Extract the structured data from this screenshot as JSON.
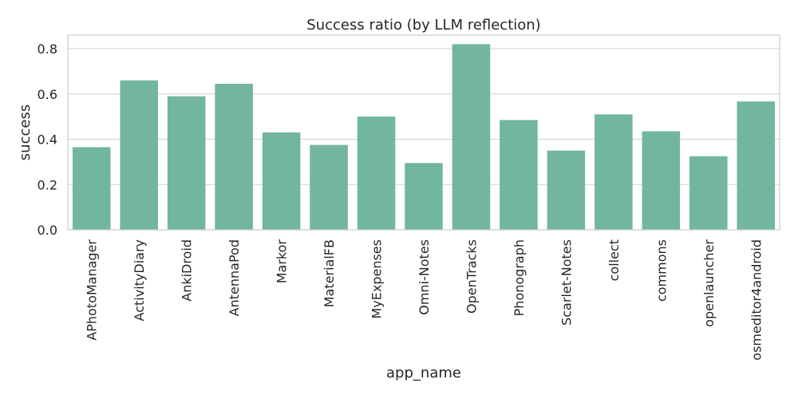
{
  "chart_data": {
    "type": "bar",
    "title": "Success ratio (by LLM reflection)",
    "xlabel": "app_name",
    "ylabel": "success",
    "ylim": [
      0,
      0.86
    ],
    "yticks": [
      0.0,
      0.2,
      0.4,
      0.6,
      0.8
    ],
    "ytick_labels": [
      "0.0",
      "0.2",
      "0.4",
      "0.6",
      "0.8"
    ],
    "grid": "horizontal",
    "bar_color": "#72b6a1",
    "categories": [
      "APhotoManager",
      "ActivityDiary",
      "AnkiDroid",
      "AntennaPod",
      "Markor",
      "MaterialFB",
      "MyExpenses",
      "Omni-Notes",
      "OpenTracks",
      "Phonograph",
      "Scarlet-Notes",
      "collect",
      "commons",
      "openlauncher",
      "osmeditor4android"
    ],
    "values": [
      0.365,
      0.66,
      0.59,
      0.645,
      0.43,
      0.375,
      0.5,
      0.295,
      0.82,
      0.485,
      0.35,
      0.51,
      0.435,
      0.325,
      0.567
    ]
  }
}
